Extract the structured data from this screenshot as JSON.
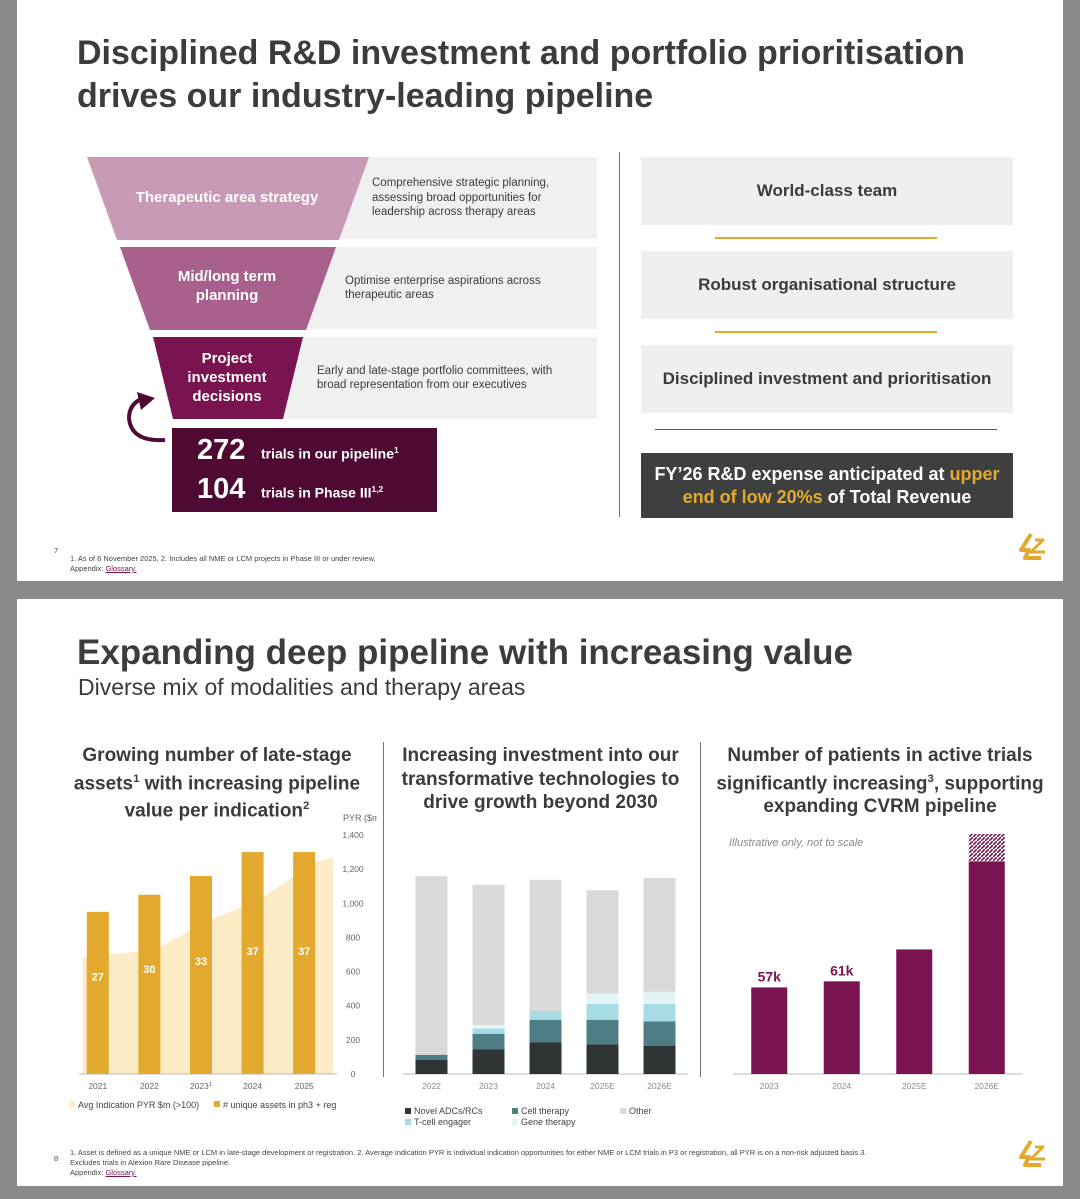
{
  "slide1": {
    "title_line1": "Disciplined R&D investment and portfolio prioritisation",
    "title_line2": "drives our industry-leading pipeline",
    "funnel": [
      {
        "label": "Therapeutic area strategy",
        "desc": "Comprehensive strategic planning, assessing broad opportunities for leadership across therapy areas",
        "color": "#c99ab6"
      },
      {
        "label": "Mid/long term planning",
        "desc": "Optimise enterprise aspirations across therapeutic areas",
        "color": "#a7618c"
      },
      {
        "label": "Project investment decisions",
        "desc": "Early and late-stage portfolio committees, with broad representation from our executives",
        "color": "#7a1450"
      }
    ],
    "stats": [
      {
        "number": "272",
        "text": "trials in our pipeline",
        "sup": "1"
      },
      {
        "number": "104",
        "text": "trials in Phase III",
        "sup": "1,2"
      }
    ],
    "right_boxes": [
      "World-class team",
      "Robust organisational structure",
      "Disciplined investment and prioritisation"
    ],
    "expense_part1": "FY’26 R&D expense anticipated at ",
    "expense_highlight": "upper end of low 20%s",
    "expense_part2": " of Total Revenue",
    "page_number": "7",
    "footnote": "1. As of 6 November 2025, 2. Includes all NME or LCM projects in Phase III or under review.",
    "appendix_prefix": "Appendix: ",
    "appendix_link": "Glossary.",
    "colors": {
      "dark_purple": "#4f0a33",
      "accent": "#7a1450",
      "gold": "#e3a92f",
      "charcoal": "#3e4040"
    }
  },
  "slide2": {
    "title": "Expanding deep pipeline with increasing value",
    "subtitle": "Diverse mix of modalities and therapy areas",
    "panel1_title_a": "Growing number of late-stage assets",
    "panel1_title_sup1": "1",
    "panel1_title_b": " with increasing pipeline value per indication",
    "panel1_title_sup2": "2",
    "panel2_title": "Increasing investment into our transformative technologies to drive growth beyond 2030",
    "panel3_title_a": "Number of patients in active trials significantly increasing",
    "panel3_title_sup": "3",
    "panel3_title_b": ", supporting expanding CVRM pipeline",
    "page_number": "8",
    "footnote": "1. Asset is defined as a unique NME or LCM in late-stage development or registration. 2. Average indication PYR is individual indication opportunities for either NME or LCM trials in P3 or registration, all PYR is on a non-risk adjusted basis 3. Excludes trials in Alexion Rare Disease pipeline.",
    "appendix_prefix": "Appendix: ",
    "appendix_link": "Glossary."
  },
  "chart_data": [
    {
      "type": "bar",
      "categories": [
        "2021",
        "2022",
        "2023",
        "2024",
        "2025"
      ],
      "category_sups": [
        "",
        "",
        "1",
        "",
        ""
      ],
      "series": [
        {
          "name": "# unique assets in ph3 + reg",
          "values": [
            27,
            30,
            33,
            37,
            37
          ],
          "color": "#e3a92f"
        },
        {
          "name": "Avg Indication PYR $m (>100)",
          "type": "area",
          "values": [
            680,
            730,
            900,
            1020,
            1230
          ],
          "color": "#fcecc5"
        }
      ],
      "bar_heights_pyr": [
        950,
        1050,
        1160,
        1300,
        1300
      ],
      "ylabel": "PYR ($m)",
      "yticks": [
        "0",
        "200",
        "400",
        "600",
        "800",
        "1,000",
        "1,200",
        "1,400"
      ],
      "ylim": [
        0,
        1400
      ]
    },
    {
      "type": "bar",
      "stacked": true,
      "categories": [
        "2022",
        "2023",
        "2024",
        "2025E",
        "2026E"
      ],
      "series": [
        {
          "name": "Novel ADCs/RCs",
          "values": [
            8,
            14,
            18,
            17,
            16
          ],
          "color": "#2f3435"
        },
        {
          "name": "Cell therapy",
          "values": [
            3,
            9,
            13,
            14,
            14
          ],
          "color": "#4f7d85"
        },
        {
          "name": "T-cell engager",
          "values": [
            0,
            3,
            5,
            9,
            10
          ],
          "color": "#a8dce5"
        },
        {
          "name": "Gene therapy",
          "values": [
            0,
            2,
            0,
            6,
            7
          ],
          "color": "#e2f4f6"
        },
        {
          "name": "Other",
          "values": [
            102,
            80,
            75,
            59,
            65
          ],
          "color": "#d9d9d9"
        }
      ],
      "legend_rows": [
        [
          "Novel ADCs/RCs",
          "Cell therapy",
          "Other"
        ],
        [
          "T-cell engager",
          "Gene therapy"
        ]
      ]
    },
    {
      "type": "bar",
      "categories": [
        "2023",
        "2024",
        "2025E",
        "2026E"
      ],
      "values": [
        57,
        61,
        82,
        140
      ],
      "value_labels": [
        "57k",
        "61k",
        "",
        ""
      ],
      "projected_extra": [
        0,
        0,
        0,
        18
      ],
      "annotation": "Illustrative only, not to scale",
      "color": "#7a1450"
    }
  ]
}
